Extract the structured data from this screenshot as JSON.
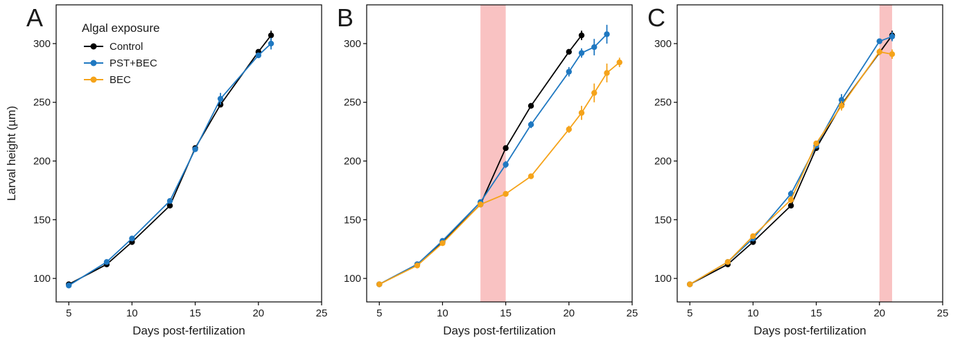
{
  "legend": {
    "title": "Algal exposure",
    "items": [
      {
        "label": "Control",
        "color": "#000000"
      },
      {
        "label": "PST+BEC",
        "color": "#1f78c1"
      },
      {
        "label": "BEC",
        "color": "#f5a31a"
      }
    ]
  },
  "shading_color": "#f9c2c2",
  "chart_data": [
    {
      "type": "line",
      "panel": "A",
      "xlabel": "Days post-fertilization",
      "ylabel": "Larval height (µm)",
      "xlim": [
        4,
        25
      ],
      "ylim": [
        80,
        333
      ],
      "xticks": [
        5,
        10,
        15,
        20,
        25
      ],
      "yticks": [
        100,
        150,
        200,
        250,
        300
      ],
      "shaded": null,
      "series": [
        {
          "name": "Control",
          "color": "#000000",
          "points": [
            [
              5,
              95,
              1
            ],
            [
              8,
              112,
              1.5
            ],
            [
              10,
              131,
              1.5
            ],
            [
              13,
              162,
              1.5
            ],
            [
              15,
              211,
              2
            ],
            [
              17,
              248,
              2
            ],
            [
              20,
              293,
              2
            ],
            [
              21,
              307,
              4
            ]
          ]
        },
        {
          "name": "PST+BEC",
          "color": "#1f78c1",
          "points": [
            [
              5,
              94,
              1
            ],
            [
              8,
              114,
              1.5
            ],
            [
              10,
              134,
              2
            ],
            [
              13,
              166,
              2
            ],
            [
              15,
              210,
              2
            ],
            [
              17,
              253,
              5
            ],
            [
              20,
              290,
              2
            ],
            [
              21,
              300,
              5
            ]
          ]
        }
      ]
    },
    {
      "type": "line",
      "panel": "B",
      "xlabel": "Days post-fertilization",
      "ylabel": "",
      "xlim": [
        4,
        25
      ],
      "ylim": [
        80,
        333
      ],
      "xticks": [
        5,
        10,
        15,
        20,
        25
      ],
      "yticks": [
        100,
        150,
        200,
        250,
        300
      ],
      "shaded": [
        13,
        15
      ],
      "series": [
        {
          "name": "Control",
          "color": "#000000",
          "points": [
            [
              5,
              95,
              1
            ],
            [
              8,
              112,
              1.5
            ],
            [
              10,
              131,
              1.5
            ],
            [
              13,
              163,
              1.5
            ],
            [
              15,
              211,
              2
            ],
            [
              17,
              247,
              2
            ],
            [
              20,
              293,
              2
            ],
            [
              21,
              307,
              4
            ]
          ]
        },
        {
          "name": "PST+BEC",
          "color": "#1f78c1",
          "points": [
            [
              5,
              95,
              1
            ],
            [
              8,
              112,
              1.5
            ],
            [
              10,
              132,
              1.5
            ],
            [
              13,
              165,
              2
            ],
            [
              15,
              197,
              3
            ],
            [
              17,
              231,
              3
            ],
            [
              20,
              276,
              4
            ],
            [
              21,
              292,
              4
            ],
            [
              22,
              297,
              7
            ],
            [
              23,
              308,
              8
            ]
          ]
        },
        {
          "name": "BEC",
          "color": "#f5a31a",
          "points": [
            [
              5,
              95,
              1
            ],
            [
              8,
              111,
              1.5
            ],
            [
              10,
              130,
              1.5
            ],
            [
              13,
              163,
              2
            ],
            [
              15,
              172,
              2
            ],
            [
              17,
              187,
              2
            ],
            [
              20,
              227,
              3
            ],
            [
              21,
              241,
              6
            ],
            [
              22,
              258,
              8
            ],
            [
              23,
              275,
              8
            ],
            [
              24,
              284,
              4
            ]
          ]
        }
      ]
    },
    {
      "type": "line",
      "panel": "C",
      "xlabel": "Days post-fertilization",
      "ylabel": "",
      "xlim": [
        4,
        25
      ],
      "ylim": [
        80,
        333
      ],
      "xticks": [
        5,
        10,
        15,
        20,
        25
      ],
      "yticks": [
        100,
        150,
        200,
        250,
        300
      ],
      "shaded": [
        20,
        21
      ],
      "series": [
        {
          "name": "Control",
          "color": "#000000",
          "points": [
            [
              5,
              95,
              1
            ],
            [
              8,
              112,
              1.5
            ],
            [
              10,
              131,
              1.5
            ],
            [
              13,
              162,
              1.5
            ],
            [
              15,
              211,
              2
            ],
            [
              17,
              248,
              2
            ],
            [
              21,
              307,
              4
            ]
          ]
        },
        {
          "name": "PST+BEC",
          "color": "#1f78c1",
          "points": [
            [
              5,
              95,
              1
            ],
            [
              8,
              114,
              1.5
            ],
            [
              10,
              134,
              2
            ],
            [
              13,
              172,
              3
            ],
            [
              15,
              213,
              2
            ],
            [
              17,
              252,
              5
            ],
            [
              20,
              302,
              2
            ],
            [
              21,
              306,
              4
            ]
          ]
        },
        {
          "name": "BEC",
          "color": "#f5a31a",
          "points": [
            [
              5,
              95,
              1
            ],
            [
              8,
              114,
              1.5
            ],
            [
              10,
              136,
              2
            ],
            [
              13,
              167,
              3
            ],
            [
              15,
              215,
              2
            ],
            [
              17,
              247,
              4
            ],
            [
              20,
              293,
              3
            ],
            [
              21,
              291,
              4
            ]
          ]
        }
      ]
    }
  ]
}
